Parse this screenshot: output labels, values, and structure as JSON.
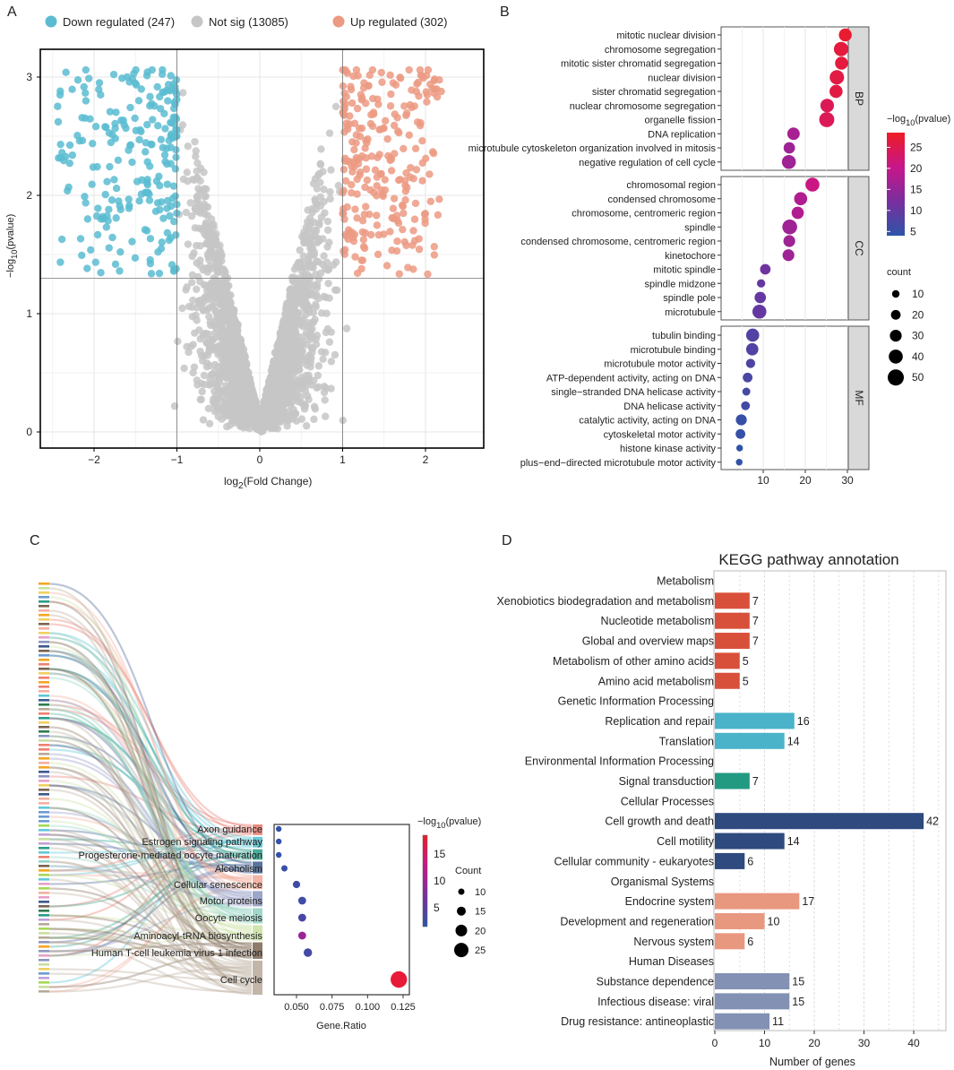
{
  "panel_labels": [
    "A",
    "B",
    "C",
    "D"
  ],
  "chart_data": [
    {
      "panel": "A",
      "type": "scatter",
      "legend": [
        {
          "label": "Down regulated (247)",
          "color": "#5bbcd1"
        },
        {
          "label": "Not sig (13085)",
          "color": "#c6c6c6"
        },
        {
          "label": "Up regulated (302)",
          "color": "#ec9a82"
        }
      ],
      "counts": {
        "down": 247,
        "not_sig": 13085,
        "up": 302
      },
      "xlabel": {
        "base": "log",
        "sub": "2",
        "rest": "(Fold Change)"
      },
      "ylabel": {
        "base": "−log",
        "sub": "10",
        "rest": "(pvalue)"
      },
      "xlim": [
        -2.6,
        2.4
      ],
      "ylim": [
        -0.1,
        3.2
      ],
      "xticks": [
        "−2",
        "−1",
        "0",
        "1",
        "2"
      ],
      "xtick_values": [
        -2,
        -1,
        0,
        1,
        2
      ],
      "yticks": [
        "0",
        "1",
        "2",
        "3"
      ],
      "ytick_values": [
        0,
        1,
        2,
        3
      ],
      "thresholds": {
        "log2fc": [
          -1,
          1
        ],
        "neglog10p": 1.3
      },
      "grid": true
    },
    {
      "panel": "B",
      "type": "scatter",
      "subtype": "dotplot",
      "xlim": [
        0,
        30.2
      ],
      "xticks": [
        "10",
        "20",
        "30"
      ],
      "xtick_values": [
        10,
        20,
        30
      ],
      "color_legend": {
        "title": {
          "base": "−log",
          "sub": "10",
          "rest": "(pvalue)"
        },
        "range": [
          4,
          28.5
        ],
        "ticks": [
          "5",
          "10",
          "15",
          "20",
          "25"
        ],
        "tick_values": [
          5,
          10,
          15,
          20,
          25
        ]
      },
      "size_legend": {
        "title": "count",
        "values": [
          "10",
          "20",
          "30",
          "40",
          "50"
        ],
        "numbers": [
          10,
          20,
          30,
          40,
          50
        ]
      },
      "groups": [
        {
          "name": "BP",
          "terms": [
            {
              "term": "mitotic nuclear division",
              "x": 29.5,
              "count": 35,
              "neglog10p": 27.5
            },
            {
              "term": "chromosome segregation",
              "x": 28.5,
              "count": 42,
              "neglog10p": 26.5
            },
            {
              "term": "mitotic sister chromatid segregation",
              "x": 28.6,
              "count": 35,
              "neglog10p": 26.5
            },
            {
              "term": "nuclear division",
              "x": 27.5,
              "count": 42,
              "neglog10p": 26
            },
            {
              "term": "sister chromatid segregation",
              "x": 27.3,
              "count": 36,
              "neglog10p": 26
            },
            {
              "term": "nuclear chromosome segregation",
              "x": 25.2,
              "count": 38,
              "neglog10p": 24.5
            },
            {
              "term": "organelle fission",
              "x": 25.1,
              "count": 45,
              "neglog10p": 24.5
            },
            {
              "term": "DNA replication",
              "x": 17.2,
              "count": 33,
              "neglog10p": 17
            },
            {
              "term": "microtubule cytoskeleton organization involved in mitosis",
              "x": 16.2,
              "count": 28,
              "neglog10p": 16
            },
            {
              "term": "negative regulation of cell cycle",
              "x": 16.1,
              "count": 40,
              "neglog10p": 16
            }
          ]
        },
        {
          "name": "CC",
          "terms": [
            {
              "term": "chromosomal region",
              "x": 21.7,
              "count": 40,
              "neglog10p": 21
            },
            {
              "term": "condensed chromosome",
              "x": 18.9,
              "count": 36,
              "neglog10p": 18
            },
            {
              "term": "chromosome, centromeric region",
              "x": 18.2,
              "count": 32,
              "neglog10p": 18
            },
            {
              "term": "spindle",
              "x": 16.3,
              "count": 44,
              "neglog10p": 16
            },
            {
              "term": "condensed chromosome, centromeric region",
              "x": 16.2,
              "count": 30,
              "neglog10p": 16
            },
            {
              "term": "kinetochore",
              "x": 16.0,
              "count": 30,
              "neglog10p": 16
            },
            {
              "term": "mitotic spindle",
              "x": 10.5,
              "count": 24,
              "neglog10p": 11
            },
            {
              "term": "spindle midzone",
              "x": 9.5,
              "count": 14,
              "neglog10p": 10
            },
            {
              "term": "spindle pole",
              "x": 9.3,
              "count": 28,
              "neglog10p": 10
            },
            {
              "term": "microtubule",
              "x": 9.1,
              "count": 40,
              "neglog10p": 10
            }
          ]
        },
        {
          "name": "MF",
          "terms": [
            {
              "term": "tubulin binding",
              "x": 7.5,
              "count": 36,
              "neglog10p": 8
            },
            {
              "term": "microtubule binding",
              "x": 7.4,
              "count": 32,
              "neglog10p": 8
            },
            {
              "term": "microtubule motor activity",
              "x": 7.0,
              "count": 18,
              "neglog10p": 7.5
            },
            {
              "term": "ATP-dependent activity, acting on DNA",
              "x": 6.3,
              "count": 20,
              "neglog10p": 7
            },
            {
              "term": "single−stranded DNA helicase activity",
              "x": 6.0,
              "count": 12,
              "neglog10p": 6.5
            },
            {
              "term": "DNA helicase activity",
              "x": 5.8,
              "count": 16,
              "neglog10p": 6.5
            },
            {
              "term": "catalytic activity, acting on DNA",
              "x": 4.8,
              "count": 26,
              "neglog10p": 5
            },
            {
              "term": "cytoskeletal motor activity",
              "x": 4.6,
              "count": 20,
              "neglog10p": 5
            },
            {
              "term": "histone kinase activity",
              "x": 4.4,
              "count": 6,
              "neglog10p": 4.5
            },
            {
              "term": "plus−end−directed microtubule motor activity",
              "x": 4.3,
              "count": 6,
              "neglog10p": 4.5
            }
          ]
        }
      ]
    },
    {
      "panel": "C",
      "type": "scatter",
      "subtype": "sankey-dotplot",
      "xlabel": "Gene.Ratio",
      "xlim": [
        0.034,
        0.127
      ],
      "xticks": [
        "0.050",
        "0.075",
        "0.100",
        "0.125"
      ],
      "xtick_values": [
        0.05,
        0.075,
        0.1,
        0.125
      ],
      "color_legend": {
        "title": {
          "base": "−log",
          "sub": "10",
          "rest": "(pvalue)"
        },
        "range": [
          1.5,
          18.5
        ],
        "ticks": [
          "5",
          "10",
          "15"
        ],
        "tick_values": [
          5,
          10,
          15
        ]
      },
      "size_legend": {
        "title": "Count",
        "values": [
          "10",
          "15",
          "20",
          "25"
        ],
        "numbers": [
          10,
          15,
          20,
          25
        ]
      },
      "pathways": [
        {
          "name": "Axon guidance",
          "gene_ratio": 0.0375,
          "count": 9,
          "neglog10p": 2.0,
          "color": "#e8766a"
        },
        {
          "name": "Estrogen signaling pathway",
          "gene_ratio": 0.0375,
          "count": 9,
          "neglog10p": 2.0,
          "color": "#4bc0d0"
        },
        {
          "name": "Progesterone-mediated oocyte maturation",
          "gene_ratio": 0.0375,
          "count": 9,
          "neglog10p": 2.1,
          "color": "#2a9d8a"
        },
        {
          "name": "Alcoholism",
          "gene_ratio": 0.0415,
          "count": 10,
          "neglog10p": 2.3,
          "color": "#3d5a8c"
        },
        {
          "name": "Cellular senescence",
          "gene_ratio": 0.05,
          "count": 12,
          "neglog10p": 2.8,
          "color": "#f2a898"
        },
        {
          "name": "Motor proteins",
          "gene_ratio": 0.054,
          "count": 13,
          "neglog10p": 3.0,
          "color": "#8b96c0"
        },
        {
          "name": "Oocyte meiosis",
          "gene_ratio": 0.054,
          "count": 13,
          "neglog10p": 3.5,
          "color": "#8fd0c0"
        },
        {
          "name": "Aminoacyl-tRNA biosynthesis",
          "gene_ratio": 0.054,
          "count": 13,
          "neglog10p": 9.5,
          "color": "#c8e0a0"
        },
        {
          "name": "Human T-cell leukemia virus 1 infection",
          "gene_ratio": 0.058,
          "count": 14,
          "neglog10p": 3.2,
          "color": "#7a6450"
        },
        {
          "name": "Cell cycle",
          "gene_ratio": 0.122,
          "count": 29,
          "neglog10p": 17.5,
          "color": "#b8a898"
        }
      ]
    },
    {
      "panel": "D",
      "type": "bar",
      "title": "KEGG pathway annotation",
      "xlabel": "Number of genes",
      "xlim": [
        0,
        46.5
      ],
      "xticks": [
        "0",
        "10",
        "20",
        "30",
        "40"
      ],
      "xtick_values": [
        0,
        10,
        20,
        30,
        40
      ],
      "categories": [
        {
          "name": "Metabolism",
          "color": "#d9503a",
          "text_color": "#e8412c",
          "items": [
            {
              "label": "Xenobiotics biodegradation and metabolism",
              "value": 7
            },
            {
              "label": "Nucleotide metabolism",
              "value": 7
            },
            {
              "label": "Global and overview maps",
              "value": 7
            },
            {
              "label": "Metabolism of other amino acids",
              "value": 5
            },
            {
              "label": "Amino acid metabolism",
              "value": 5
            }
          ]
        },
        {
          "name": "Genetic Information Processing",
          "color": "#4ab3c9",
          "text_color": "#3aaac4",
          "items": [
            {
              "label": "Replication and repair",
              "value": 16
            },
            {
              "label": "Translation",
              "value": 14
            }
          ]
        },
        {
          "name": "Environmental Information Processing",
          "color": "#229a82",
          "text_color": "#1f9a80",
          "items": [
            {
              "label": "Signal transduction",
              "value": 7
            }
          ]
        },
        {
          "name": "Cellular Processes",
          "color": "#2e4a7e",
          "text_color": "#2e4a7e",
          "items": [
            {
              "label": "Cell growth and death",
              "value": 42
            },
            {
              "label": "Cell motility",
              "value": 14
            },
            {
              "label": "Cellular community - eukaryotes",
              "value": 6
            }
          ]
        },
        {
          "name": "Organismal Systems",
          "color": "#e99880",
          "text_color": "#ec8c70",
          "items": [
            {
              "label": "Endocrine system",
              "value": 17
            },
            {
              "label": "Development and regeneration",
              "value": 10
            },
            {
              "label": "Nervous system",
              "value": 6
            }
          ]
        },
        {
          "name": "Human Diseases",
          "color": "#8391b5",
          "text_color": "#7f8db3",
          "items": [
            {
              "label": "Substance dependence",
              "value": 15
            },
            {
              "label": "Infectious disease: viral",
              "value": 15
            },
            {
              "label": "Drug resistance: antineoplastic",
              "value": 11
            }
          ]
        }
      ]
    }
  ]
}
